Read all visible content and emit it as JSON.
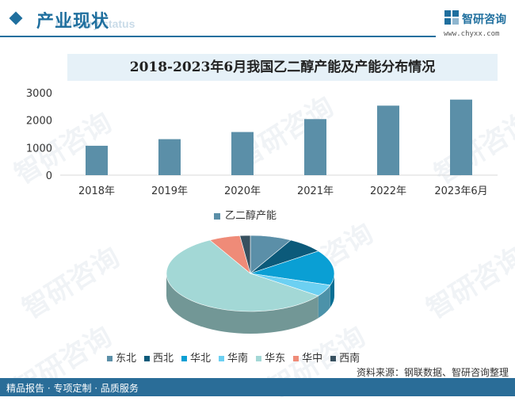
{
  "header": {
    "title": "产业现状",
    "watermark": "Industry status",
    "brand_name": "智研咨询",
    "brand_url": "www.chyxx.com"
  },
  "watermark_text": "智研咨询",
  "chart_data": [
    {
      "type": "bar",
      "title": "2018-2023年6月我国乙二醇产能及产能分布情况",
      "categories": [
        "2018年",
        "2019年",
        "2020年",
        "2021年",
        "2022年",
        "2023年6月"
      ],
      "series": [
        {
          "name": "乙二醇产能",
          "values": [
            1070,
            1310,
            1570,
            2040,
            2530,
            2750
          ]
        }
      ],
      "ylim": [
        0,
        3000
      ],
      "yticks": [
        0,
        1000,
        2000,
        3000
      ],
      "grid": false,
      "legend": "bottom-center",
      "color": "#5b8fa8"
    },
    {
      "type": "pie",
      "categories": [
        "东北",
        "西北",
        "华北",
        "华南",
        "华东",
        "华中",
        "西南"
      ],
      "values": [
        8,
        7,
        15,
        5,
        57,
        6,
        2
      ],
      "colors": [
        "#5b8fa8",
        "#0c5a7a",
        "#0a9fd4",
        "#6cd0f2",
        "#a3d8d6",
        "#ef8b78",
        "#37505f"
      ],
      "legend": "bottom-center"
    }
  ],
  "footer": {
    "left": "精品报告 · 专项定制 · 品质服务",
    "source": "资料来源：钢联数据、智研咨询整理"
  }
}
